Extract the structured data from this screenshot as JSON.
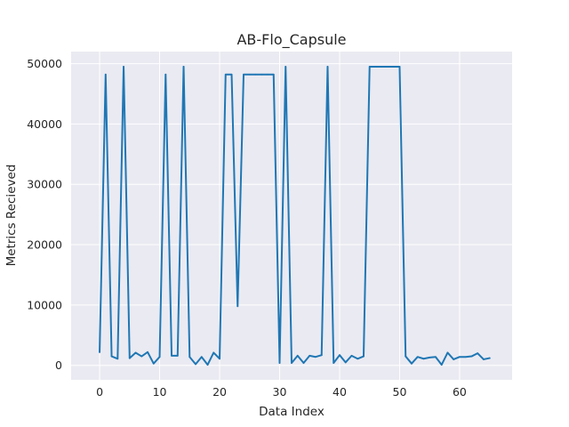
{
  "chart_data": {
    "type": "line",
    "title": "AB-Flo_Capsule",
    "xlabel": "Data Index",
    "ylabel": "Metrics Recieved",
    "xlim": [
      -4.75,
      68.75
    ],
    "ylim": [
      -2400,
      52000
    ],
    "xticks": [
      0,
      10,
      20,
      30,
      40,
      50,
      60
    ],
    "yticks": [
      0,
      10000,
      20000,
      30000,
      40000,
      50000
    ],
    "grid": true,
    "style": "seaborn-darkgrid",
    "colors": {
      "background": "#eaeaf2",
      "grid": "#ffffff",
      "line": "#1f77b4"
    },
    "series": [
      {
        "x": [
          0,
          1,
          2,
          3,
          4,
          5,
          6,
          7,
          8,
          9,
          10,
          11,
          12,
          13,
          14,
          15,
          16,
          17,
          18,
          19,
          20,
          21,
          22,
          23,
          24,
          25,
          26,
          27,
          28,
          29,
          30,
          31,
          32,
          33,
          34,
          35,
          36,
          37,
          38,
          39,
          40,
          41,
          42,
          43,
          44,
          45,
          46,
          47,
          48,
          49,
          50,
          51,
          52,
          53,
          54,
          55,
          56,
          57,
          58,
          59,
          60,
          61,
          62,
          63,
          64,
          65
        ],
        "values": [
          2200,
          48200,
          1500,
          1100,
          49500,
          1200,
          2100,
          1500,
          2200,
          300,
          1400,
          48200,
          1600,
          1600,
          49500,
          1400,
          200,
          1400,
          100,
          2100,
          1100,
          48200,
          48200,
          9800,
          48200,
          48200,
          48200,
          48200,
          48200,
          48200,
          400,
          49500,
          400,
          1600,
          400,
          1600,
          1400,
          1700,
          49500,
          400,
          1700,
          500,
          1600,
          1100,
          1500,
          49500,
          49500,
          49500,
          49500,
          49500,
          49500,
          1500,
          300,
          1400,
          1100,
          1300,
          1400,
          100,
          2100,
          1000,
          1400,
          1400,
          1500,
          2000,
          1000,
          1200
        ]
      }
    ]
  }
}
